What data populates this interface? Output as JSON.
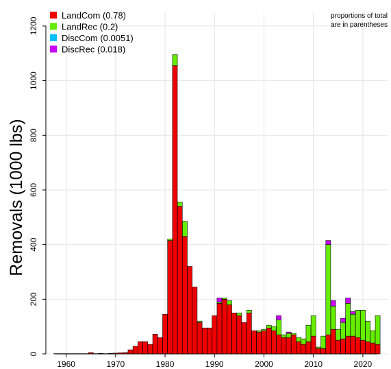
{
  "chart_data": {
    "type": "bar",
    "stacked": true,
    "title": "",
    "xlabel": "",
    "ylabel": "Removals (1000 lbs)",
    "xlim": [
      1958,
      2023
    ],
    "ylim": [
      0,
      1200
    ],
    "x_ticks": [
      1960,
      1970,
      1980,
      1990,
      2000,
      2010,
      2020
    ],
    "y_ticks": [
      0,
      200,
      400,
      600,
      800,
      1000,
      1200
    ],
    "grid": true,
    "legend_position": "top-left",
    "note": [
      "proportions of total",
      "are in parentheses"
    ],
    "years": [
      1958,
      1959,
      1960,
      1961,
      1962,
      1963,
      1964,
      1965,
      1966,
      1967,
      1968,
      1969,
      1970,
      1971,
      1972,
      1973,
      1974,
      1975,
      1976,
      1977,
      1978,
      1979,
      1980,
      1981,
      1982,
      1983,
      1984,
      1985,
      1986,
      1987,
      1988,
      1989,
      1990,
      1991,
      1992,
      1993,
      1994,
      1995,
      1996,
      1997,
      1998,
      1999,
      2000,
      2001,
      2002,
      2003,
      2004,
      2005,
      2006,
      2007,
      2008,
      2009,
      2010,
      2011,
      2012,
      2013,
      2014,
      2015,
      2016,
      2017,
      2018,
      2019,
      2020,
      2021,
      2022,
      2023
    ],
    "series": [
      {
        "name": "LandCom (0.78)",
        "color": "#ee0000",
        "values": [
          1,
          1,
          1,
          1,
          1,
          1,
          1,
          5,
          1,
          2,
          1,
          2,
          3,
          4,
          5,
          15,
          28,
          45,
          45,
          35,
          72,
          60,
          145,
          415,
          1055,
          540,
          430,
          320,
          245,
          115,
          95,
          95,
          140,
          185,
          200,
          180,
          150,
          140,
          115,
          150,
          85,
          80,
          85,
          95,
          85,
          70,
          60,
          60,
          70,
          45,
          35,
          45,
          65,
          20,
          20,
          70,
          90,
          50,
          55,
          65,
          65,
          60,
          50,
          45,
          40,
          35
        ]
      },
      {
        "name": "LandRec (0.2)",
        "color": "#66ee00",
        "values": [
          0,
          0,
          0,
          0,
          0,
          0,
          0,
          0,
          0,
          0,
          0,
          0,
          0,
          0,
          0,
          0,
          0,
          0,
          0,
          0,
          0,
          0,
          0,
          5,
          40,
          15,
          55,
          0,
          0,
          5,
          0,
          0,
          0,
          5,
          5,
          15,
          0,
          10,
          0,
          10,
          0,
          5,
          5,
          10,
          15,
          55,
          10,
          15,
          5,
          15,
          20,
          60,
          75,
          5,
          45,
          330,
          85,
          40,
          60,
          120,
          80,
          100,
          110,
          75,
          45,
          105
        ]
      },
      {
        "name": "DiscCom (0.0051)",
        "color": "#00bfff",
        "values": [
          0,
          0,
          0,
          0,
          0,
          0,
          0,
          0,
          0,
          0,
          0,
          0,
          0,
          0,
          0,
          0,
          0,
          0,
          0,
          0,
          0,
          0,
          0,
          0,
          0,
          0,
          0,
          0,
          0,
          0,
          0,
          0,
          0,
          0,
          0,
          0,
          0,
          0,
          0,
          0,
          0,
          0,
          0,
          0,
          0,
          0,
          0,
          0,
          0,
          0,
          0,
          0,
          0,
          0,
          0,
          0,
          0,
          0,
          0,
          0,
          0,
          0,
          0,
          0,
          0,
          0
        ]
      },
      {
        "name": "DiscRec (0.018)",
        "color": "#cc00ff",
        "values": [
          0,
          0,
          0,
          0,
          0,
          0,
          0,
          0,
          0,
          0,
          0,
          0,
          0,
          0,
          0,
          0,
          0,
          0,
          0,
          0,
          0,
          0,
          0,
          0,
          0,
          0,
          0,
          0,
          0,
          0,
          0,
          0,
          0,
          15,
          0,
          0,
          0,
          0,
          0,
          0,
          0,
          0,
          0,
          0,
          0,
          15,
          0,
          5,
          0,
          0,
          0,
          0,
          0,
          0,
          0,
          15,
          20,
          0,
          15,
          20,
          10,
          0,
          0,
          0,
          0,
          0
        ]
      }
    ]
  }
}
